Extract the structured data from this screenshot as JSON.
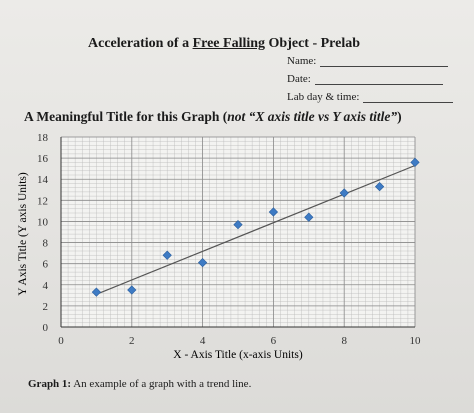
{
  "header": {
    "title_prefix": "Acceleration of a ",
    "title_underlined": "Free Falling",
    "title_suffix": " Object - Prelab",
    "name_label": "Name:",
    "date_label": "Date:",
    "lab_day_label": "Lab day & time:"
  },
  "graph_heading": {
    "prefix": "A Meaningful Title for this Graph (",
    "italic": "not “X axis title vs Y axis title”",
    "suffix": ")"
  },
  "caption": {
    "label": "Graph 1:",
    "text": " An example of a graph with a trend line."
  },
  "chart_data": {
    "type": "scatter",
    "xlabel": "X - Axis Title (x-axis Units)",
    "ylabel": "Y Axis Title (Y axis Units)",
    "xlim": [
      0,
      10
    ],
    "ylim": [
      0,
      18
    ],
    "xticks": [
      0,
      2,
      4,
      6,
      8,
      10
    ],
    "yticks": [
      0,
      2,
      4,
      6,
      8,
      10,
      12,
      14,
      16,
      18
    ],
    "grid": true,
    "series": [
      {
        "x": [
          1,
          2,
          3,
          4,
          5,
          6,
          7,
          8,
          9,
          10
        ],
        "y": [
          3.3,
          3.5,
          6.8,
          6.1,
          9.7,
          10.9,
          10.4,
          12.7,
          13.3,
          15.6
        ]
      }
    ],
    "trendline": {
      "x": [
        1,
        10
      ],
      "y": [
        3.1,
        15.3
      ]
    },
    "marker_color": "#3e7bc4",
    "line_color": "#555555"
  }
}
